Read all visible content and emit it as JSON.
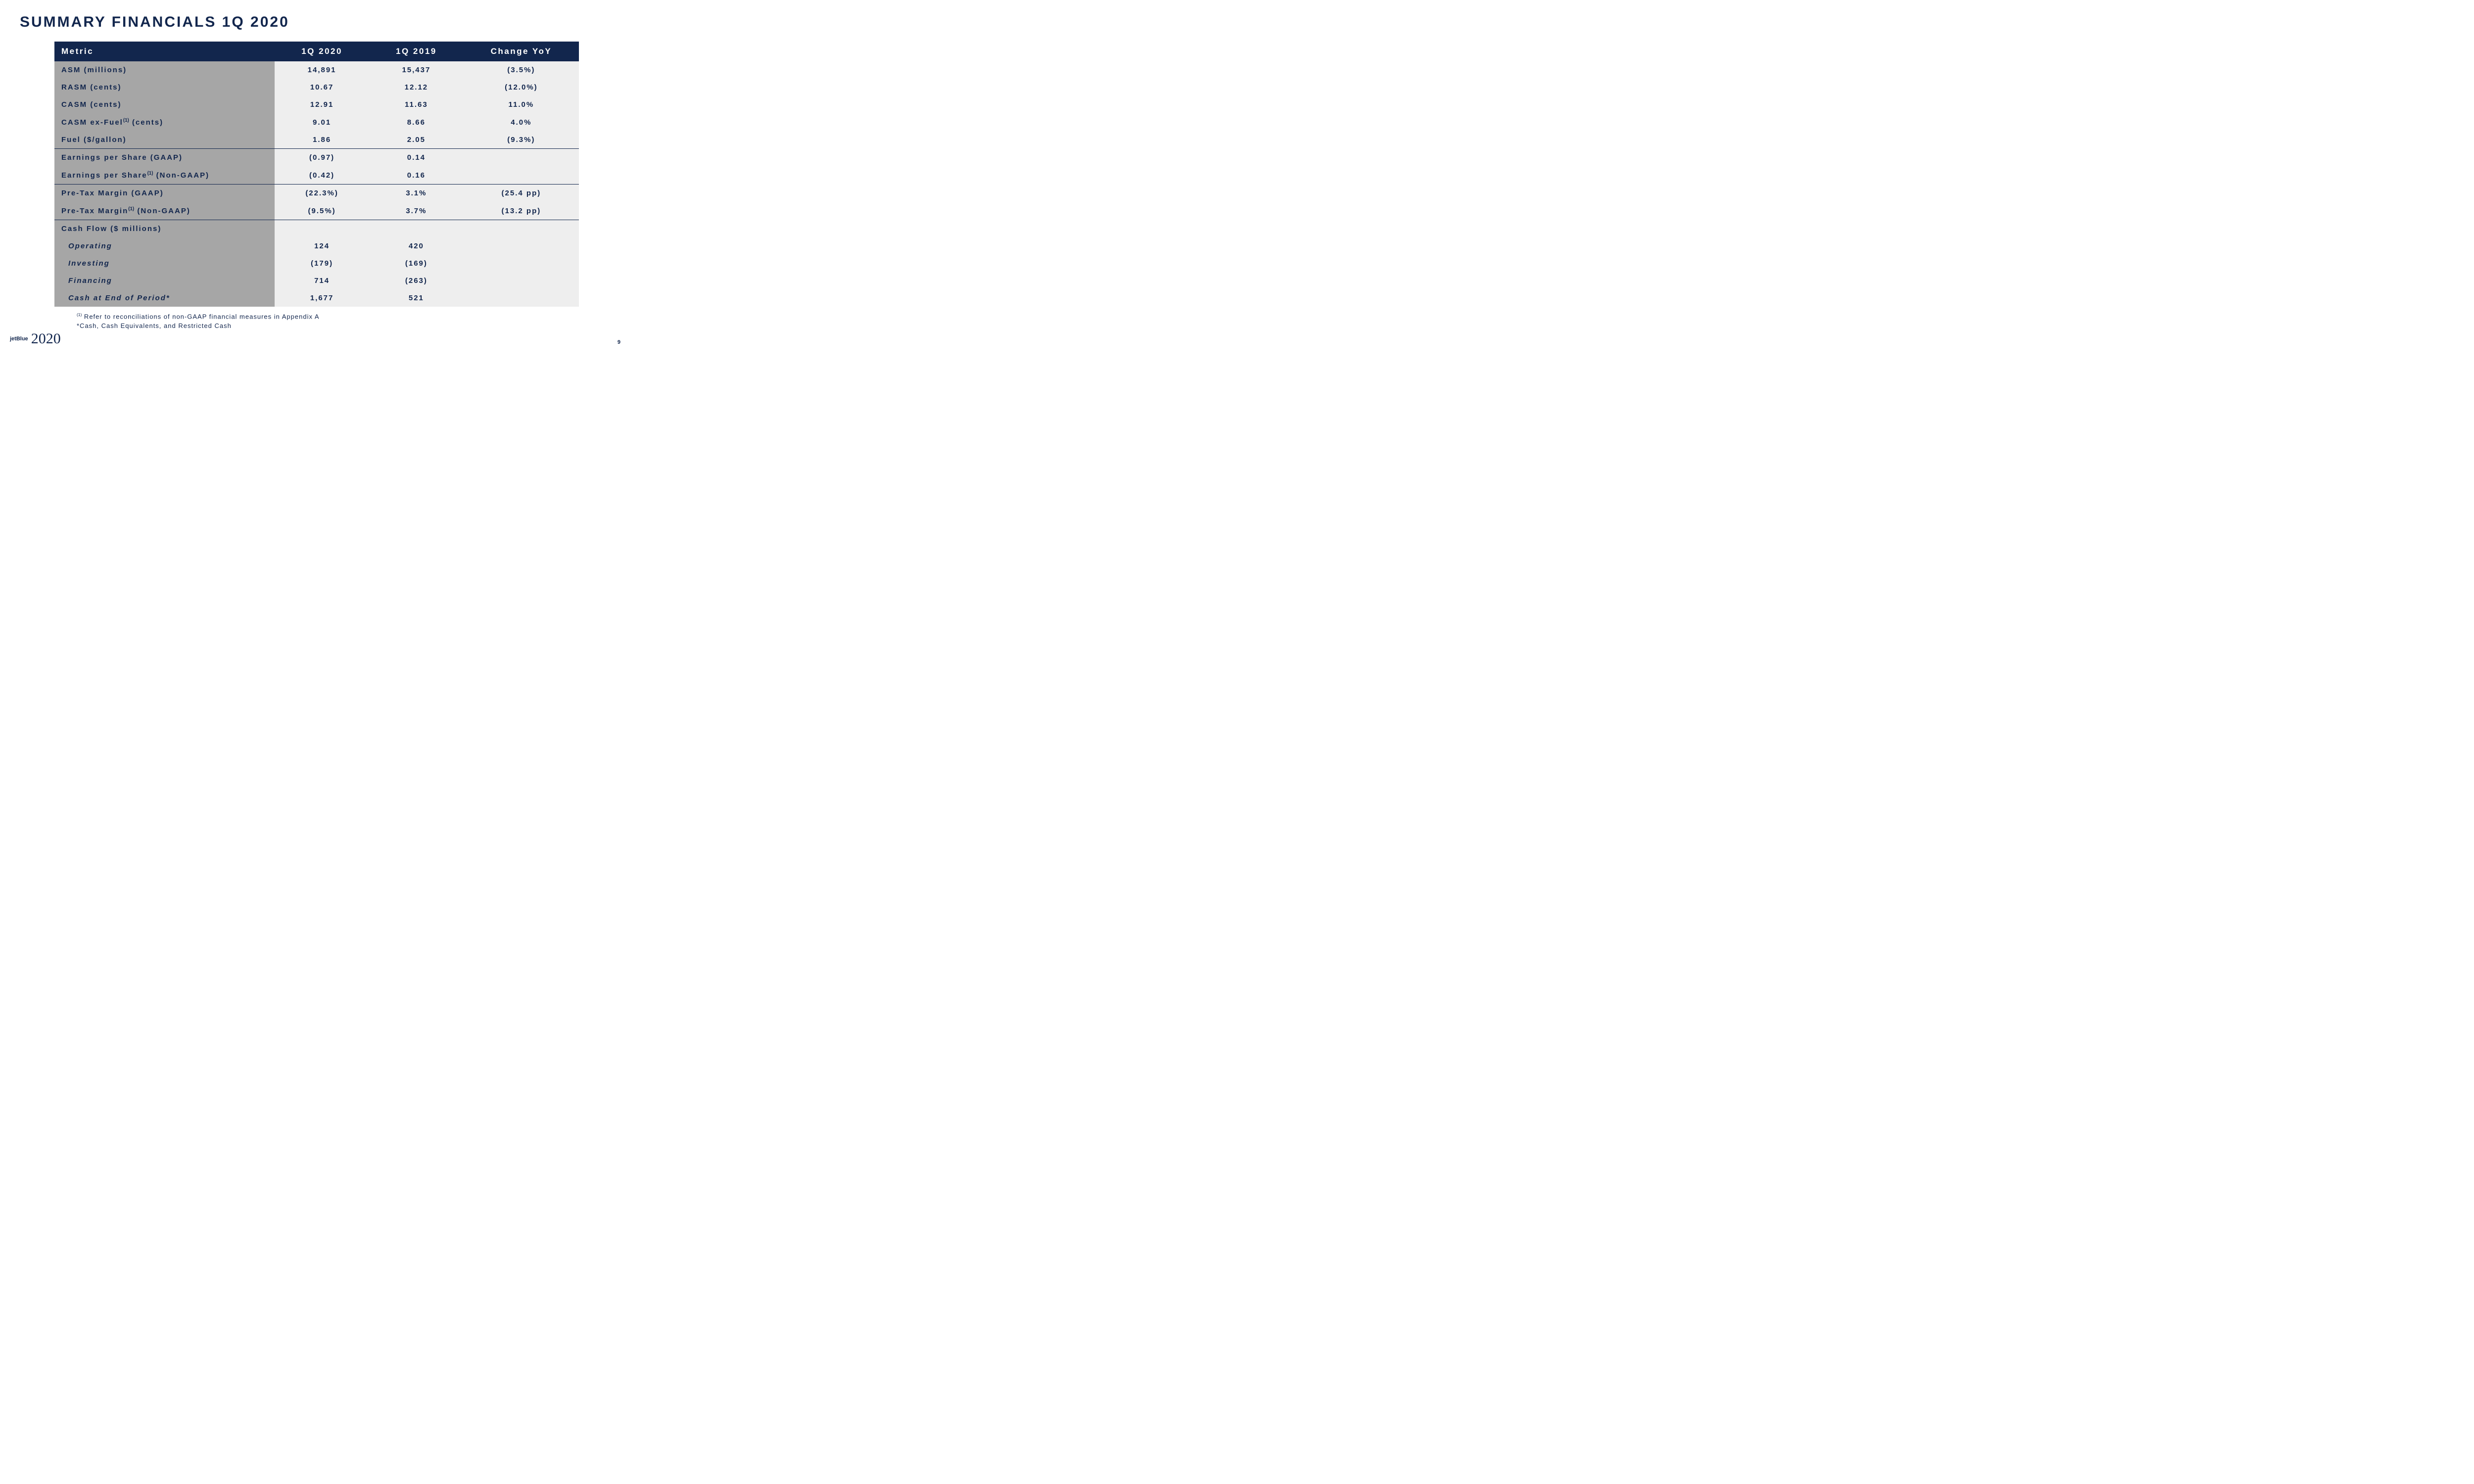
{
  "title": "SUMMARY FINANCIALS 1Q 2020",
  "header": {
    "metric": "Metric",
    "q2020": "1Q 2020",
    "q2019": "1Q 2019",
    "change": "Change YoY"
  },
  "rows": [
    {
      "metric": "ASM (millions)",
      "q2020": "14,891",
      "q2019": "15,437",
      "change": "(3.5%)"
    },
    {
      "metric": "RASM (cents)",
      "q2020": "10.67",
      "q2019": "12.12",
      "change": "(12.0%)"
    },
    {
      "metric": "CASM (cents)",
      "q2020": "12.91",
      "q2019": "11.63",
      "change": "11.0%"
    },
    {
      "metric_html": "CASM ex-Fuel<sup>(1)</sup> (cents)",
      "q2020": "9.01",
      "q2019": "8.66",
      "change": "4.0%"
    },
    {
      "metric": "Fuel ($/gallon)",
      "q2020": "1.86",
      "q2019": "2.05",
      "change": "(9.3%)"
    },
    {
      "metric": "Earnings per Share (GAAP)",
      "q2020": "(0.97)",
      "q2019": "0.14",
      "change": "",
      "sep": true
    },
    {
      "metric_html": "Earnings per Share<sup>(1)</sup> (Non-GAAP)",
      "q2020": "(0.42)",
      "q2019": "0.16",
      "change": ""
    },
    {
      "metric": "Pre-Tax Margin  (GAAP)",
      "q2020": "(22.3%)",
      "q2019": "3.1%",
      "change": "(25.4 pp)",
      "sep": true
    },
    {
      "metric_html": "Pre-Tax Margin<sup>(1)</sup> (Non-GAAP)",
      "q2020": "(9.5%)",
      "q2019": "3.7%",
      "change": "(13.2 pp)"
    },
    {
      "metric": "Cash Flow ($ millions)",
      "q2020": "",
      "q2019": "",
      "change": "",
      "sep": true
    },
    {
      "metric": "Operating",
      "q2020": "124",
      "q2019": "420",
      "change": "",
      "italic": true
    },
    {
      "metric": "Investing",
      "q2020": "(179)",
      "q2019": "(169)",
      "change": "",
      "italic": true
    },
    {
      "metric": "Financing",
      "q2020": "714",
      "q2019": "(263)",
      "change": "",
      "italic": true
    },
    {
      "metric": "Cash at End of Period*",
      "q2020": "1,677",
      "q2019": "521",
      "change": "",
      "italic": true
    }
  ],
  "footnote1_html": "<sup>(1)</sup> Refer to reconciliations of non-GAAP financial measures in Appendix A",
  "footnote2": "*Cash, Cash Equivalents, and Restricted Cash",
  "logo_jet": "jetBlue",
  "logo_year": "2020",
  "page": "9"
}
